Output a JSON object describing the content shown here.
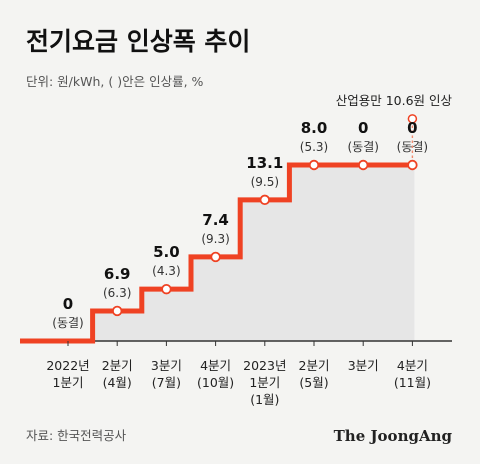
{
  "chart_data": {
    "type": "line",
    "title": "전기요금 인상폭 추이",
    "unit_note": "단위: 원/kWh, ( )안은 인상률, %",
    "categories": [
      [
        "2022년",
        "1분기"
      ],
      [
        "2분기",
        "(4월)"
      ],
      [
        "3분기",
        "(7월)"
      ],
      [
        "4분기",
        "(10월)"
      ],
      [
        "2023년",
        "1분기",
        "(1월)"
      ],
      [
        "2분기",
        "(5월)"
      ],
      [
        "3분기"
      ],
      [
        "4분기",
        "(11월)"
      ]
    ],
    "series": [
      {
        "values": [
          0,
          6.9,
          5.0,
          7.4,
          13.1,
          8.0,
          0,
          0
        ],
        "value_labels": [
          "0",
          "6.9",
          "5.0",
          "7.4",
          "13.1",
          "8.0",
          "0",
          "0"
        ],
        "rate_labels": [
          "(동결)",
          "(6.3)",
          "(4.3)",
          "(9.3)",
          "(9.5)",
          "(5.3)",
          "(동결)",
          "(동결)"
        ],
        "cumulative": [
          0,
          6.9,
          11.9,
          19.3,
          32.4,
          40.4,
          40.4,
          40.4
        ]
      }
    ],
    "annotation": {
      "text": "산업용만 10.6원 인상",
      "category_index": 7,
      "value": 10.6
    },
    "colors": {
      "line": "#ef4223",
      "fill": "#e6e6e6",
      "dashed": "#f08a6e",
      "axis": "#333333"
    },
    "grid": false,
    "legend": "none"
  },
  "footer": {
    "source": "자료: 한국전력공사",
    "brand": "The JoongAng"
  }
}
